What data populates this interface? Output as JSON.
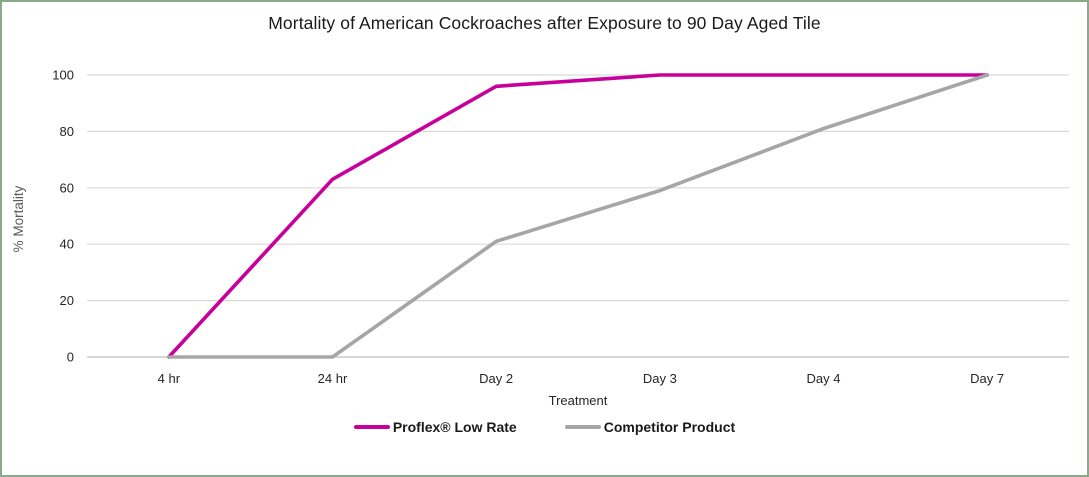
{
  "frame": {
    "border_color": "#8aa88a",
    "background": "#ffffff"
  },
  "chart_data": {
    "type": "line",
    "title": "Mortality of American Cockroaches after Exposure to 90 Day Aged Tile",
    "xlabel": "Treatment",
    "ylabel": "% Mortality",
    "categories": [
      "4 hr",
      "24 hr",
      "Day 2",
      "Day 3",
      "Day 4",
      "Day 7"
    ],
    "series": [
      {
        "name": "Proflex® Low Rate",
        "color": "#C8009B",
        "values": [
          0,
          63,
          96,
          100,
          100,
          100
        ]
      },
      {
        "name": "Competitor Product",
        "color": "#A6A6A6",
        "values": [
          0,
          0,
          41,
          59,
          81,
          100
        ]
      }
    ],
    "ylim": [
      0,
      100
    ],
    "y_ticks": [
      0,
      20,
      40,
      60,
      80,
      100
    ],
    "grid": "horizontal",
    "legend_position": "bottom",
    "colors": {
      "gridline": "#D9D9D9",
      "axis_line": "#BFBFBF",
      "tick_text": "#262626",
      "axis_title_text": "#595959"
    }
  }
}
